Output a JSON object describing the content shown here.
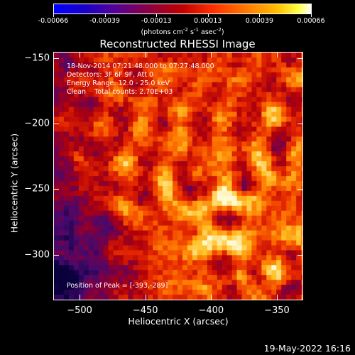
{
  "colorbar": {
    "ticks": [
      "-0.00066",
      "-0.00039",
      "-0.00013",
      "0.00013",
      "0.00039",
      "0.00066"
    ],
    "units": "(photons cm-2 s-1 asec-2)",
    "units_parts": {
      "a": "(photons cm",
      "b": "-2",
      "c": " s",
      "d": "-1",
      "e": " asec",
      "f": "-2",
      "g": ")"
    },
    "colors": [
      "#0000ff",
      "#5a0090",
      "#c00000",
      "#ff7a00",
      "#ffff40",
      "#ffffff"
    ]
  },
  "chart_data": {
    "type": "heatmap",
    "title": "Reconstructed RHESSI Image",
    "xlabel": "Heliocentric X (arcsec)",
    "ylabel": "Heliocentric Y (arcsec)",
    "xlim": [
      -520,
      -330
    ],
    "ylim": [
      -335,
      -145
    ],
    "xticks": [
      -500,
      -450,
      -400,
      -350
    ],
    "yticks": [
      -150,
      -200,
      -250,
      -300
    ],
    "xtick_labels": [
      "−500",
      "−450",
      "−400",
      "−350"
    ],
    "ytick_labels": [
      "−150",
      "−200",
      "−250",
      "−300"
    ],
    "color_range": [
      -0.00066,
      0.00066
    ],
    "peak": [
      -393,
      -289
    ],
    "annotations": {
      "line1": "18-Nov-2014 07:21:48.000 to 07:27:48.000",
      "line2": "Detectors: 3F 6F 9F, Att 0",
      "line3": "Energy Range: 12.0 - 25.0 keV",
      "line4": "Clean    Total counts: 2.70E+03",
      "peak_text": "Position of Peak = [-393,-289]"
    }
  },
  "timestamp": "19-May-2022 16:16"
}
